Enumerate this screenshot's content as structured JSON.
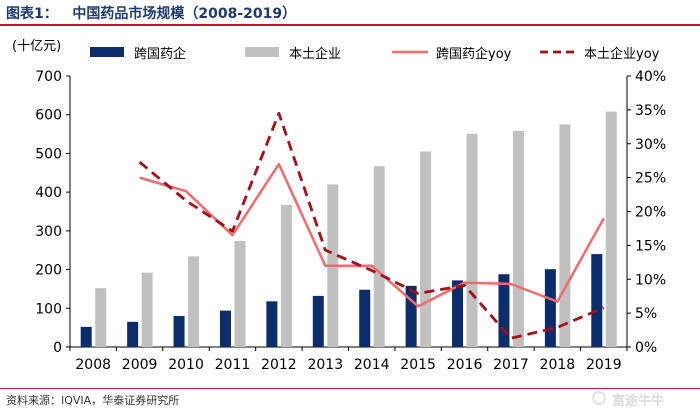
{
  "figure": {
    "title": "图表1：   中国药品市场规模（2008-2019）",
    "source": "资料来源：IQVIA，华泰证券研究所",
    "watermark": "富途牛牛"
  },
  "chart_data": {
    "type": "bar",
    "title": "图表1：   中国药品市场规模（2008-2019）",
    "ylabel": "(十亿元)",
    "categories": [
      "2008",
      "2009",
      "2010",
      "2011",
      "2012",
      "2013",
      "2014",
      "2015",
      "2016",
      "2017",
      "2018",
      "2019"
    ],
    "ylim": [
      0,
      700
    ],
    "y_ticks": [
      "0",
      "100",
      "200",
      "300",
      "400",
      "500",
      "600",
      "700"
    ],
    "y2lim": [
      0,
      40
    ],
    "y2_ticks": [
      "0%",
      "5%",
      "10%",
      "15%",
      "20%",
      "25%",
      "30%",
      "35%",
      "40%"
    ],
    "legend_position": "top",
    "series": [
      {
        "name": "跨国药企",
        "kind": "bar",
        "axis": "left",
        "color": "#0b2d6b",
        "values": [
          52,
          65,
          80,
          94,
          118,
          132,
          148,
          158,
          172,
          188,
          201,
          240
        ]
      },
      {
        "name": "本土企业",
        "kind": "bar",
        "axis": "left",
        "color": "#c0c0c0",
        "values": [
          152,
          192,
          234,
          274,
          367,
          420,
          467,
          505,
          551,
          558,
          575,
          608
        ]
      },
      {
        "name": "跨国药企yoy",
        "kind": "line",
        "style": "solid",
        "axis": "right",
        "color": "#f26b6b",
        "values": [
          null,
          25.0,
          23.0,
          16.5,
          27.0,
          12.0,
          12.0,
          6.0,
          9.5,
          9.3,
          6.7,
          19.0
        ]
      },
      {
        "name": "本土企业yoy",
        "kind": "line",
        "style": "dashed",
        "axis": "right",
        "color": "#a50f15",
        "values": [
          null,
          27.3,
          21.6,
          17.1,
          34.5,
          14.3,
          11.3,
          7.9,
          9.1,
          1.3,
          2.9,
          5.8
        ]
      }
    ]
  }
}
